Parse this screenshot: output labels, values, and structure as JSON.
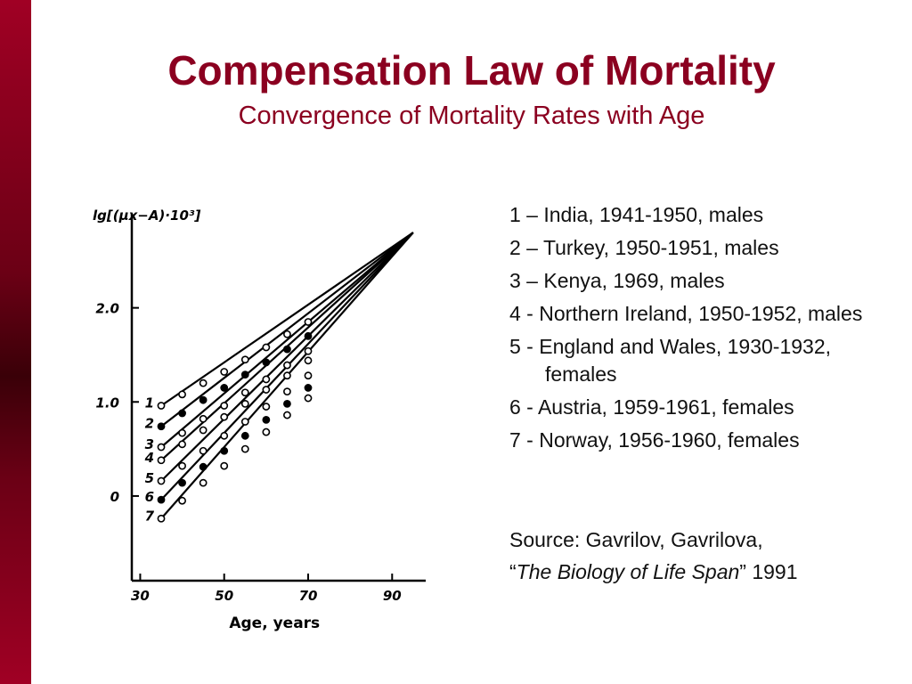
{
  "slide": {
    "title": "Compensation Law of Mortality",
    "subtitle": "Convergence of Mortality Rates with Age"
  },
  "legend": [
    "1 – India, 1941-1950, males",
    "2 – Turkey, 1950-1951, males",
    "3 – Kenya, 1969, males",
    "4 - Northern Ireland, 1950-1952, males",
    "5 - England and Wales, 1930-1932, females",
    "6 - Austria, 1959-1961, females",
    "7 - Norway, 1956-1960, females"
  ],
  "source": {
    "line1": "Source: Gavrilov, Gavrilova,",
    "open_quote": "“",
    "book": "The Biology of Life Span",
    "close_quote": "”",
    "year": " 1991"
  },
  "colors": {
    "accent": "#8b0020",
    "sidebar": "#6b0015",
    "ink": "#111111"
  },
  "chart_data": {
    "type": "line",
    "ylabel": "lg[(μx−A)·10³]",
    "xlabel": "Age, years",
    "xlim": [
      28,
      98
    ],
    "ylim": [
      -0.9,
      3.0
    ],
    "xticks": [
      30,
      50,
      70,
      90
    ],
    "xtick_labels": [
      "30",
      "50",
      "70",
      "90"
    ],
    "yticks": [
      0,
      1,
      2
    ],
    "ytick_labels": [
      "0",
      "1.0",
      "2.0"
    ],
    "convergence_point": {
      "x": 95,
      "y": 2.8
    },
    "series": [
      {
        "name": "1",
        "marker": "open",
        "x": [
          35,
          40,
          45,
          50,
          55,
          60,
          65,
          70
        ],
        "y": [
          0.96,
          1.08,
          1.2,
          1.32,
          1.45,
          1.58,
          1.72,
          1.85
        ]
      },
      {
        "name": "2",
        "marker": "filled",
        "x": [
          35,
          40,
          45,
          50,
          55,
          60,
          65,
          70
        ],
        "y": [
          0.74,
          0.88,
          1.02,
          1.15,
          1.29,
          1.42,
          1.56,
          1.7
        ]
      },
      {
        "name": "3",
        "marker": "open",
        "x": [
          35,
          40,
          45,
          50,
          55,
          60,
          65,
          70
        ],
        "y": [
          0.52,
          0.67,
          0.82,
          0.96,
          1.1,
          1.24,
          1.39,
          1.54
        ]
      },
      {
        "name": "4",
        "marker": "open",
        "x": [
          35,
          40,
          45,
          50,
          55,
          60,
          65,
          70
        ],
        "y": [
          0.38,
          0.55,
          0.7,
          0.84,
          0.98,
          1.13,
          1.28,
          1.44
        ]
      },
      {
        "name": "5",
        "marker": "open",
        "x": [
          35,
          40,
          45,
          50,
          55,
          60,
          65,
          70
        ],
        "y": [
          0.16,
          0.32,
          0.48,
          0.64,
          0.79,
          0.95,
          1.11,
          1.28
        ]
      },
      {
        "name": "6",
        "marker": "filled",
        "x": [
          35,
          40,
          45,
          50,
          55,
          60,
          65,
          70
        ],
        "y": [
          -0.04,
          0.14,
          0.31,
          0.48,
          0.64,
          0.81,
          0.98,
          1.15
        ]
      },
      {
        "name": "7",
        "marker": "open",
        "x": [
          35,
          40,
          45,
          50,
          55,
          60,
          65,
          70
        ],
        "y": [
          -0.24,
          -0.05,
          0.14,
          0.32,
          0.5,
          0.68,
          0.86,
          1.04
        ]
      }
    ]
  }
}
